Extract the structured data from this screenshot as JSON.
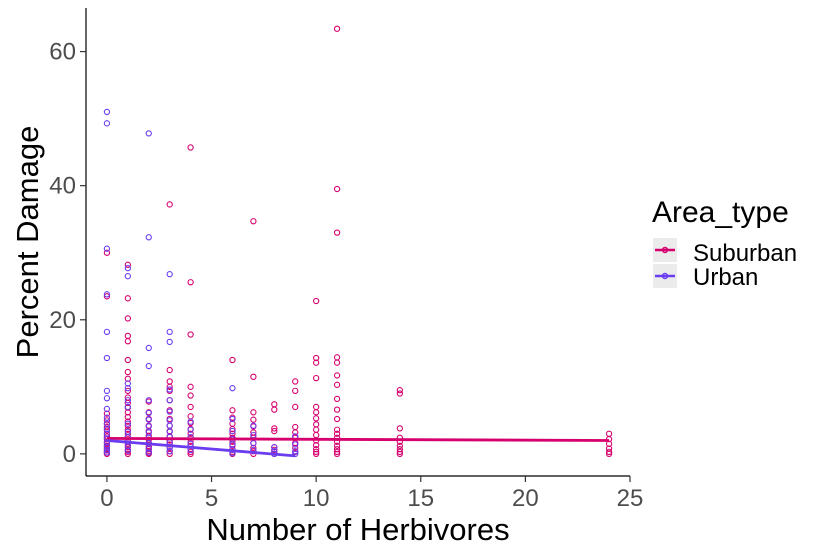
{
  "chart_data": {
    "type": "scatter",
    "xlabel": "Number of Herbivores",
    "ylabel": "Percent Damage",
    "xlim": [
      -1,
      25
    ],
    "ylim": [
      -3.3,
      66.5
    ],
    "x_ticks": [
      0,
      5,
      10,
      15,
      20,
      25
    ],
    "y_ticks": [
      0,
      20,
      40,
      60
    ],
    "grid": false,
    "legend": {
      "title": "Area_type",
      "placement": "right",
      "entries": [
        {
          "label": "Suburban",
          "color": "#d6006e"
        },
        {
          "label": "Urban",
          "color": "#6a3df0"
        }
      ]
    },
    "series": [
      {
        "name": "Suburban",
        "color": "#d6006e",
        "points": [
          [
            0,
            30
          ],
          [
            0,
            23.5
          ],
          [
            0,
            6
          ],
          [
            0,
            5
          ],
          [
            0,
            4.5
          ],
          [
            0,
            4
          ],
          [
            0,
            3.5
          ],
          [
            0,
            3
          ],
          [
            0,
            2.6
          ],
          [
            0,
            2.2
          ],
          [
            0,
            1.8
          ],
          [
            0,
            1.5
          ],
          [
            0,
            1.2
          ],
          [
            0,
            0.8
          ],
          [
            0,
            0.5
          ],
          [
            0,
            0.2
          ],
          [
            0,
            0
          ],
          [
            1,
            28.2
          ],
          [
            1,
            23.2
          ],
          [
            1,
            20.2
          ],
          [
            1,
            17.6
          ],
          [
            1,
            16.8
          ],
          [
            1,
            14
          ],
          [
            1,
            12.2
          ],
          [
            1,
            11.2
          ],
          [
            1,
            9.4
          ],
          [
            1,
            8.4
          ],
          [
            1,
            7.6
          ],
          [
            1,
            6.9
          ],
          [
            1,
            6.2
          ],
          [
            1,
            5.5
          ],
          [
            1,
            4.8
          ],
          [
            1,
            4.2
          ],
          [
            1,
            3.6
          ],
          [
            1,
            3
          ],
          [
            1,
            2.5
          ],
          [
            1,
            2
          ],
          [
            1,
            1.5
          ],
          [
            1,
            1
          ],
          [
            1,
            0.6
          ],
          [
            1,
            0.3
          ],
          [
            1,
            0
          ],
          [
            2,
            7.8
          ],
          [
            2,
            6.2
          ],
          [
            2,
            5.2
          ],
          [
            2,
            4.2
          ],
          [
            2,
            3.4
          ],
          [
            2,
            2.7
          ],
          [
            2,
            2.1
          ],
          [
            2,
            1.6
          ],
          [
            2,
            1.1
          ],
          [
            2,
            0.7
          ],
          [
            2,
            0.4
          ],
          [
            2,
            0.1
          ],
          [
            2,
            0
          ],
          [
            3,
            37.2
          ],
          [
            3,
            12.5
          ],
          [
            3,
            10.8
          ],
          [
            3,
            10
          ],
          [
            3,
            9.4
          ],
          [
            3,
            8
          ],
          [
            3,
            6.5
          ],
          [
            3,
            5.2
          ],
          [
            3,
            4.2
          ],
          [
            3,
            3.4
          ],
          [
            3,
            2.6
          ],
          [
            3,
            2
          ],
          [
            3,
            1.4
          ],
          [
            3,
            0.9
          ],
          [
            3,
            0.4
          ],
          [
            3,
            0
          ],
          [
            4,
            45.7
          ],
          [
            4,
            25.6
          ],
          [
            4,
            17.8
          ],
          [
            4,
            10
          ],
          [
            4,
            8.7
          ],
          [
            4,
            7
          ],
          [
            4,
            5.6
          ],
          [
            4,
            4.6
          ],
          [
            4,
            3.7
          ],
          [
            4,
            3
          ],
          [
            4,
            2.4
          ],
          [
            4,
            1.8
          ],
          [
            4,
            1.2
          ],
          [
            4,
            0.7
          ],
          [
            4,
            0.3
          ],
          [
            4,
            0
          ],
          [
            6,
            14
          ],
          [
            6,
            6.5
          ],
          [
            6,
            5.4
          ],
          [
            6,
            4.5
          ],
          [
            6,
            3.7
          ],
          [
            6,
            3
          ],
          [
            6,
            2.4
          ],
          [
            6,
            1.8
          ],
          [
            6,
            1.2
          ],
          [
            6,
            0.7
          ],
          [
            6,
            0.3
          ],
          [
            6,
            0
          ],
          [
            7,
            34.7
          ],
          [
            7,
            11.5
          ],
          [
            7,
            6.2
          ],
          [
            7,
            5.1
          ],
          [
            7,
            4.1
          ],
          [
            7,
            3.2
          ],
          [
            7,
            2.4
          ],
          [
            7,
            1.6
          ],
          [
            7,
            0.9
          ],
          [
            7,
            0.4
          ],
          [
            7,
            0
          ],
          [
            8,
            7.4
          ],
          [
            8,
            6.6
          ],
          [
            8,
            3.8
          ],
          [
            8,
            3.4
          ],
          [
            8,
            1
          ],
          [
            8,
            0.6
          ],
          [
            8,
            0.3
          ],
          [
            8,
            0
          ],
          [
            9,
            10.8
          ],
          [
            9,
            9.4
          ],
          [
            9,
            7
          ],
          [
            9,
            4
          ],
          [
            9,
            3.2
          ],
          [
            9,
            2.4
          ],
          [
            9,
            1.6
          ],
          [
            9,
            0.9
          ],
          [
            9,
            0.3
          ],
          [
            10,
            22.8
          ],
          [
            10,
            14.3
          ],
          [
            10,
            13.6
          ],
          [
            10,
            11.3
          ],
          [
            10,
            7
          ],
          [
            10,
            6.2
          ],
          [
            10,
            5.3
          ],
          [
            10,
            4.4
          ],
          [
            10,
            3.6
          ],
          [
            10,
            2.8
          ],
          [
            10,
            2
          ],
          [
            10,
            1.3
          ],
          [
            10,
            0.7
          ],
          [
            10,
            0.3
          ],
          [
            10,
            0
          ],
          [
            11,
            63.4
          ],
          [
            11,
            39.5
          ],
          [
            11,
            33
          ],
          [
            11,
            14.4
          ],
          [
            11,
            13.6
          ],
          [
            11,
            11.7
          ],
          [
            11,
            10.3
          ],
          [
            11,
            8.2
          ],
          [
            11,
            6.6
          ],
          [
            11,
            5.2
          ],
          [
            11,
            3.6
          ],
          [
            11,
            3
          ],
          [
            11,
            2.4
          ],
          [
            11,
            1.8
          ],
          [
            11,
            1.2
          ],
          [
            11,
            0.7
          ],
          [
            11,
            0.3
          ],
          [
            11,
            0
          ],
          [
            14,
            9.5
          ],
          [
            14,
            9
          ],
          [
            14,
            3.8
          ],
          [
            14,
            2.4
          ],
          [
            14,
            1.8
          ],
          [
            14,
            1.2
          ],
          [
            14,
            0.7
          ],
          [
            14,
            0.3
          ],
          [
            14,
            0
          ],
          [
            24,
            3
          ],
          [
            24,
            2.2
          ],
          [
            24,
            1.5
          ],
          [
            24,
            0.8
          ],
          [
            24,
            0.3
          ],
          [
            24,
            0
          ]
        ],
        "fit": [
          [
            0,
            2.3
          ],
          [
            24,
            2.0
          ]
        ]
      },
      {
        "name": "Urban",
        "color": "#6a3df0",
        "points": [
          [
            0,
            51
          ],
          [
            0,
            49.3
          ],
          [
            0,
            30.6
          ],
          [
            0,
            23.8
          ],
          [
            0,
            18.2
          ],
          [
            0,
            14.3
          ],
          [
            0,
            9.4
          ],
          [
            0,
            8.3
          ],
          [
            0,
            6.7
          ],
          [
            0,
            5.4
          ],
          [
            0,
            4.5
          ],
          [
            0,
            3.7
          ],
          [
            0,
            3
          ],
          [
            0,
            2.3
          ],
          [
            0,
            1.7
          ],
          [
            0,
            1.1
          ],
          [
            0,
            0.6
          ],
          [
            0,
            0.2
          ],
          [
            1,
            27.7
          ],
          [
            1,
            26.5
          ],
          [
            1,
            10.5
          ],
          [
            1,
            9.8
          ],
          [
            1,
            8
          ],
          [
            1,
            7
          ],
          [
            1,
            4.5
          ],
          [
            1,
            3.3
          ],
          [
            1,
            2.5
          ],
          [
            1,
            1.8
          ],
          [
            1,
            1.2
          ],
          [
            1,
            0.5
          ],
          [
            2,
            47.8
          ],
          [
            2,
            32.3
          ],
          [
            2,
            15.8
          ],
          [
            2,
            13.1
          ],
          [
            2,
            8
          ],
          [
            2,
            6.1
          ],
          [
            2,
            5.1
          ],
          [
            2,
            4.1
          ],
          [
            2,
            3.2
          ],
          [
            2,
            2.4
          ],
          [
            2,
            1.6
          ],
          [
            2,
            0.8
          ],
          [
            2,
            0.2
          ],
          [
            3,
            26.8
          ],
          [
            3,
            18.2
          ],
          [
            3,
            16.7
          ],
          [
            3,
            9.6
          ],
          [
            3,
            8
          ],
          [
            3,
            6.3
          ],
          [
            3,
            5
          ],
          [
            3,
            4.2
          ],
          [
            3,
            3.3
          ],
          [
            3,
            2.5
          ],
          [
            3,
            1.7
          ],
          [
            3,
            1
          ],
          [
            3,
            0.4
          ],
          [
            4,
            4.8
          ],
          [
            4,
            3.6
          ],
          [
            4,
            2.5
          ],
          [
            4,
            1.5
          ],
          [
            4,
            0.6
          ],
          [
            6,
            9.8
          ],
          [
            6,
            5.2
          ],
          [
            6,
            3.4
          ],
          [
            6,
            2.2
          ],
          [
            6,
            1.4
          ],
          [
            6,
            0.6
          ],
          [
            6,
            0.1
          ],
          [
            7,
            4.2
          ],
          [
            7,
            2.8
          ],
          [
            7,
            1.6
          ],
          [
            7,
            0.6
          ],
          [
            8,
            1
          ],
          [
            8,
            0.4
          ],
          [
            8,
            0
          ],
          [
            9,
            2.6
          ],
          [
            9,
            1.4
          ],
          [
            9,
            0.4
          ],
          [
            9,
            0
          ]
        ],
        "fit": [
          [
            0,
            2.0
          ],
          [
            9,
            -0.3
          ]
        ]
      }
    ]
  }
}
